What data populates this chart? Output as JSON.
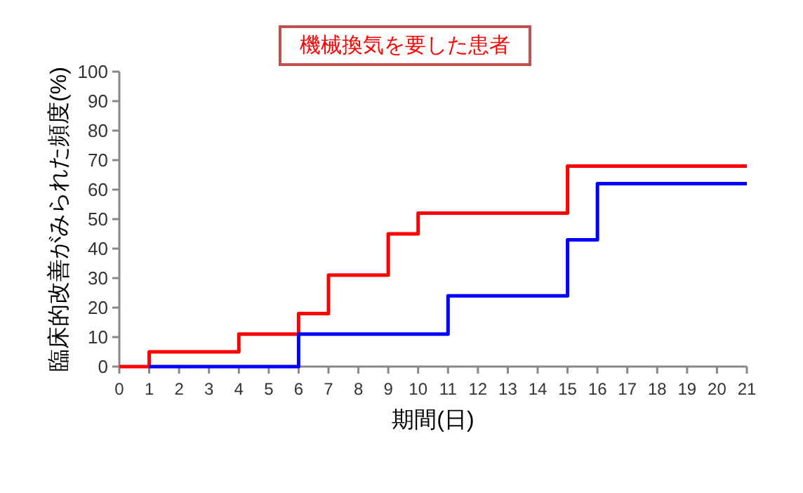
{
  "chart_data": {
    "type": "step",
    "xlabel": "期間(日)",
    "ylabel": "臨床的改善がみられた頻度(%)",
    "xlim": [
      0,
      21
    ],
    "xticks": [
      0,
      1,
      2,
      3,
      4,
      5,
      6,
      7,
      8,
      9,
      10,
      11,
      12,
      13,
      14,
      15,
      16,
      17,
      18,
      19,
      20,
      21
    ],
    "ylim": [
      0,
      100
    ],
    "yticks": [
      0,
      10,
      20,
      30,
      40,
      50,
      60,
      70,
      80,
      90,
      100
    ],
    "legend": "top",
    "grid": false,
    "series": [
      {
        "name": "機械換気を要した患者",
        "color": "#ff0000",
        "x": [
          0,
          1,
          4,
          6,
          7,
          9,
          10,
          15,
          21
        ],
        "values": [
          0,
          5,
          11,
          18,
          31,
          45,
          52,
          68,
          68
        ]
      },
      {
        "color": "#0000ff",
        "x": [
          1,
          6,
          11,
          15,
          16,
          21
        ],
        "values": [
          0,
          11,
          24,
          43,
          62,
          62
        ]
      }
    ]
  }
}
